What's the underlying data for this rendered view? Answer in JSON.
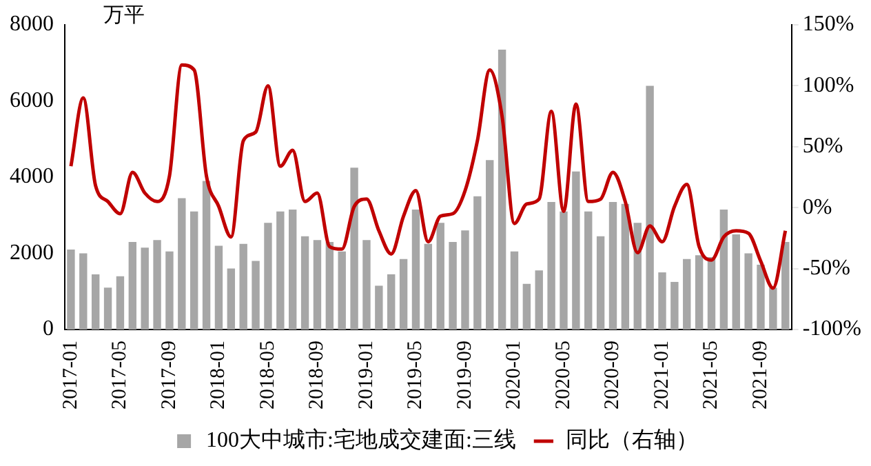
{
  "chart_data": {
    "type": "bar",
    "categories": [
      "2017-01",
      null,
      null,
      null,
      "2017-05",
      null,
      null,
      null,
      "2017-09",
      null,
      null,
      null,
      "2018-01",
      null,
      null,
      null,
      "2018-05",
      null,
      null,
      null,
      "2018-09",
      null,
      null,
      null,
      "2019-01",
      null,
      null,
      null,
      "2019-05",
      null,
      null,
      null,
      "2019-09",
      null,
      null,
      null,
      "2020-01",
      null,
      null,
      null,
      "2020-05",
      null,
      null,
      null,
      "2020-09",
      null,
      null,
      null,
      "2021-01",
      null,
      null,
      null,
      "2021-05",
      null,
      null,
      null,
      "2021-09",
      null,
      null
    ],
    "series": [
      {
        "name": "100大中城市:宅地成交建面:三线",
        "color": "#a6a6a6",
        "values": [
          2100,
          2000,
          1450,
          1100,
          1400,
          2300,
          2150,
          2350,
          2050,
          3450,
          3100,
          3900,
          2200,
          1600,
          2250,
          1800,
          2800,
          3100,
          3150,
          2450,
          2350,
          2300,
          2050,
          4250,
          2350,
          1150,
          1450,
          1850,
          3150,
          2250,
          2800,
          2300,
          2600,
          3500,
          4450,
          7350,
          2050,
          1200,
          1550,
          3350,
          3100,
          4150,
          3100,
          2450,
          3350,
          3300,
          2800,
          6400,
          1500,
          1250,
          1850,
          1950,
          1900,
          3150,
          2500,
          2000,
          1700,
          1100,
          2300
        ]
      },
      {
        "type": "line",
        "name": "同比（右轴）",
        "color": "#c00000",
        "axis": "y2",
        "values": [
          34,
          90,
          18,
          5,
          -5,
          29,
          12,
          5,
          26,
          117,
          113,
          26,
          1,
          -24,
          55,
          62,
          100,
          34,
          47,
          5,
          12,
          -32,
          -34,
          1,
          7,
          -19,
          -38,
          -7,
          14,
          -28,
          -7,
          -5,
          14,
          55,
          113,
          75,
          -13,
          3,
          7,
          79,
          -3,
          85,
          5,
          7,
          29,
          5,
          -37,
          -15,
          -28,
          1,
          19,
          -32,
          -43,
          -24,
          -19,
          -21,
          -44,
          -66,
          -19
        ]
      }
    ],
    "ylim": [
      0,
      8000
    ],
    "yticks": [
      0,
      2000,
      4000,
      6000,
      8000
    ],
    "y2lim": [
      -100,
      150
    ],
    "y2ticks": [
      {
        "value": -100,
        "label": "-100%"
      },
      {
        "value": -50,
        "label": "-50%"
      },
      {
        "value": 0,
        "label": "0%"
      },
      {
        "value": 50,
        "label": "50%"
      },
      {
        "value": 100,
        "label": "100%"
      },
      {
        "value": 150,
        "label": "150%"
      }
    ],
    "legend": "bottom",
    "marker": "none",
    "annotations": [
      "万平"
    ]
  }
}
